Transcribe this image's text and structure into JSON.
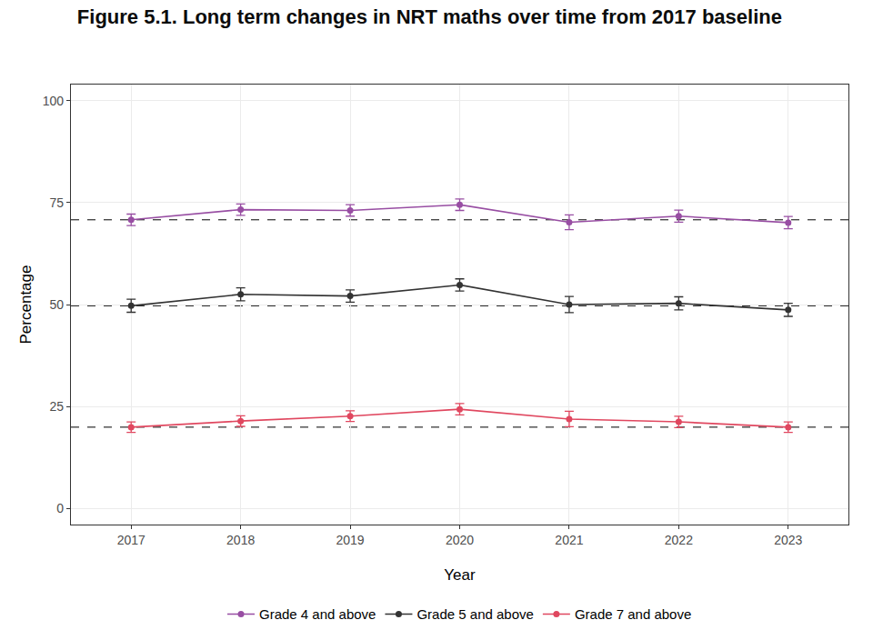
{
  "chart_data": {
    "type": "line",
    "title": "Figure 5.1. Long term changes in NRT maths over time from 2017 baseline",
    "x_label": "Year",
    "y_label": "Percentage",
    "x": [
      2017,
      2018,
      2019,
      2020,
      2021,
      2022,
      2023
    ],
    "xlim": [
      2016.45,
      2023.55
    ],
    "xticks": [
      2017,
      2018,
      2019,
      2020,
      2021,
      2022,
      2023
    ],
    "ylim": [
      -4,
      104
    ],
    "yticks": [
      0,
      25,
      50,
      75,
      100
    ],
    "grid": true,
    "legend": "bottom",
    "marker": "circle",
    "series": [
      {
        "name": "Grade 4 and above",
        "color": "#984ea3",
        "values": [
          70.8,
          73.3,
          73.1,
          74.5,
          70.2,
          71.7,
          70.1
        ],
        "error": [
          1.4,
          1.4,
          1.4,
          1.4,
          1.8,
          1.5,
          1.5
        ]
      },
      {
        "name": "Grade 5 and above",
        "color": "#333333",
        "values": [
          49.7,
          52.5,
          52.1,
          54.8,
          50.0,
          50.3,
          48.7
        ],
        "error": [
          1.6,
          1.6,
          1.5,
          1.5,
          2.0,
          1.6,
          1.6
        ]
      },
      {
        "name": "Grade 7 and above",
        "color": "#e0475f",
        "values": [
          19.9,
          21.4,
          22.6,
          24.3,
          21.9,
          21.2,
          19.9
        ],
        "error": [
          1.3,
          1.3,
          1.3,
          1.4,
          1.9,
          1.4,
          1.3
        ]
      }
    ]
  }
}
